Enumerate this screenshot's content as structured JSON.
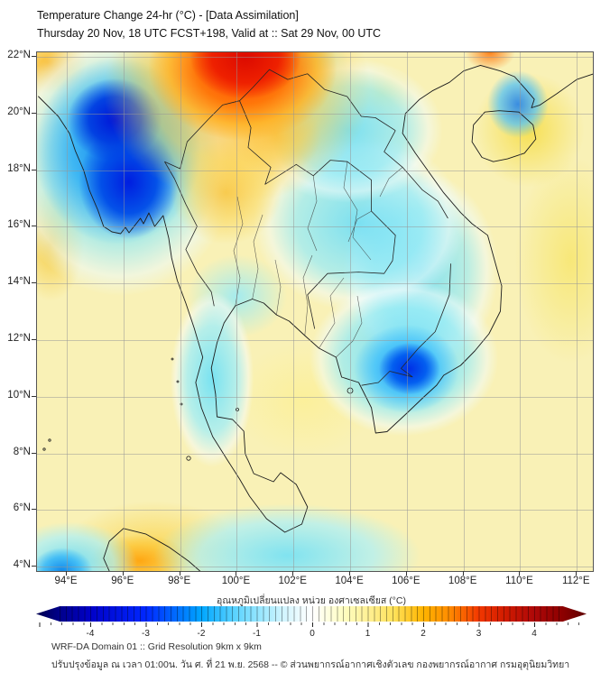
{
  "header": {
    "title": "Temperature Change 24-hr (°C) - [Data Assimilation]",
    "subtitle": "Thursday 20 Nov, 18 UTC FCST+198, Valid at :: Sat 29 Nov, 00 UTC"
  },
  "map": {
    "lat_ticks": [
      "22°N",
      "20°N",
      "18°N",
      "16°N",
      "14°N",
      "12°N",
      "10°N",
      "8°N",
      "6°N",
      "4°N"
    ],
    "lon_ticks": [
      "94°E",
      "96°E",
      "98°E",
      "100°E",
      "102°E",
      "104°E",
      "106°E",
      "108°E",
      "110°E",
      "112°E"
    ],
    "base_color": "#f9f1b6",
    "features": [
      {
        "name": "warm-anomaly-core-north-thailand",
        "at": "37.5% 1%",
        "size": "10% 8%",
        "stops": "#dc0a00 0%, #ee2000 60%, rgba(255,80,0,0) 100%"
      },
      {
        "name": "warm-anomaly-north",
        "at": "37% 3%",
        "size": "17% 14%",
        "stops": "rgba(255,45,0,.96) 0%, rgba(255,110,0,.9) 50%, rgba(255,175,30,.75) 78%, rgba(255,205,80,0) 100%"
      },
      {
        "name": "warm-halo-north",
        "at": "36% 7%",
        "size": "24% 22%",
        "stops": "rgba(255,150,10,.55) 0%, rgba(253,205,70,.55) 65%, rgba(253,220,110,0) 100%"
      },
      {
        "name": "gold-extension-east",
        "at": "43% 16%",
        "size": "8% 8%",
        "stops": "rgba(250,190,50,.8) 0%, rgba(252,220,100,0) 100%"
      },
      {
        "name": "gold-central-thailand",
        "at": "34% 27%",
        "size": "10% 10%",
        "stops": "rgba(248,195,60,.85) 0%, rgba(250,215,95,.6) 55%, rgba(252,230,140,0) 100%"
      },
      {
        "name": "cold-anomaly-myanmar-north",
        "at": "14% 13%",
        "size": "8.5% 8%",
        "stops": "#0016d8 0%, rgba(0,60,225,.95) 55%, rgba(0,120,240,0) 100%"
      },
      {
        "name": "cold-anomaly-myanmar-south",
        "at": "16.5% 25%",
        "size": "9% 11%",
        "stops": "#001ee0 0%, rgba(0,75,232,.95) 55%, rgba(0,130,245,0) 100%"
      },
      {
        "name": "cold-halo-myanmar",
        "at": "14.5% 19%",
        "size": "15% 18%",
        "stops": "rgba(0,115,238,.9) 0%, rgba(45,175,246,.85) 55%, rgba(110,220,250,0) 100%"
      },
      {
        "name": "cyan-halo-myanmar",
        "at": "15% 21%",
        "size": "21% 26%",
        "stops": "rgba(85,205,248,.75) 0%, rgba(140,232,250,.65) 60%, rgba(235,250,252,.55) 85%, rgba(255,255,255,0) 100%"
      },
      {
        "name": "cold-anomaly-core-south-vietnam",
        "at": "67% 61%",
        "size": "5.5% 5%",
        "stops": "#0030e6 0%, rgba(0,90,240,.95) 55%, rgba(30,140,246,0) 100%"
      },
      {
        "name": "cold-mid-south-vietnam",
        "at": "66.5% 61%",
        "size": "9.5% 8.5%",
        "stops": "rgba(25,135,244,.92) 0%, rgba(70,195,250,.85) 60%, rgba(120,225,250,0) 100%"
      },
      {
        "name": "cyan-halo-south-vietnam",
        "at": "66% 59%",
        "size": "17% 15%",
        "stops": "rgba(95,215,248,.85) 0%, rgba(145,235,250,.7) 65%, rgba(240,252,254,.5) 88%, rgba(255,255,255,0) 100%"
      },
      {
        "name": "cold-spot-top-right",
        "at": "86.5% 10%",
        "size": "5.5% 6.5%",
        "stops": "rgba(25,125,240,.85) 0%, rgba(85,195,248,.75) 60%, rgba(130,228,250,0) 100%"
      },
      {
        "name": "warm-dot-top-right",
        "at": "81.5% 0%",
        "size": "4.5% 3.5%",
        "stops": "rgba(255,110,0,.85) 0%, rgba(255,190,60,0) 100%"
      },
      {
        "name": "cyan-wash-laos",
        "at": "56% 15%",
        "size": "17% 14%",
        "stops": "rgba(110,222,246,.9) 0%, rgba(150,235,250,.7) 60%, rgba(240,252,254,.5) 85%, rgba(255,255,255,0) 100%"
      },
      {
        "name": "cyan-top-edge",
        "at": "48% 2%",
        "size": "8% 6%",
        "stops": "rgba(140,230,250,.8) 0%, rgba(240,252,254,0) 100%"
      },
      {
        "name": "cyan-wash-central",
        "at": "58% 33%",
        "size": "19% 17%",
        "stops": "rgba(110,222,246,.9) 0%, rgba(150,235,250,.7) 60%, rgba(240,252,254,.5) 85%, rgba(255,255,255,0) 100%"
      },
      {
        "name": "cyan-wash-east-coast",
        "at": "69% 42%",
        "size": "14% 19%",
        "stops": "rgba(110,222,246,.85) 0%, rgba(150,235,250,.65) 60%, rgba(240,252,254,.5) 85%, rgba(255,255,255,0) 100%"
      },
      {
        "name": "cyan-peninsula",
        "at": "31.5% 63%",
        "size": "7.5% 17%",
        "stops": "rgba(110,225,246,.92) 0%, rgba(160,238,250,.75) 60%, rgba(245,252,254,.5) 87%, rgba(255,255,255,0) 100%"
      },
      {
        "name": "cyan-peninsula-north",
        "at": "36% 47%",
        "size": "9% 8%",
        "stops": "rgba(150,235,248,.85) 0%, rgba(245,252,254,0) 100%"
      },
      {
        "name": "cyan-bottom-band",
        "at": "45% 97%",
        "size": "24% 10%",
        "stops": "rgba(115,225,246,.9) 0%, rgba(170,240,250,.7) 65%, rgba(255,255,255,0) 100%"
      },
      {
        "name": "cold-bottom-left",
        "at": "4.5% 100%",
        "size": "5.5% 4.5%",
        "stops": "rgba(15,135,235,.98) 0%, rgba(60,185,246,.9) 60%, rgba(110,222,250,0) 100%"
      },
      {
        "name": "cyan-bottom-left",
        "at": "6% 98.5%",
        "size": "12% 8%",
        "stops": "rgba(100,218,246,.9) 0%, rgba(170,240,250,.7) 65%, rgba(255,255,255,0) 100%"
      },
      {
        "name": "warm-sumatra",
        "at": "18.5% 98%",
        "size": "9% 5%",
        "stops": "rgba(255,165,15,.97) 0%, rgba(252,200,60,.85) 60%, rgba(252,220,110,0) 100%"
      },
      {
        "name": "gold-sumatra-halo",
        "at": "21% 95.5%",
        "size": "16% 9%",
        "stops": "rgba(250,210,70,.8) 0%, rgba(252,228,130,0) 100%"
      },
      {
        "name": "gold-left-edge",
        "at": "2.5% 37%",
        "size": "6% 11%",
        "stops": "rgba(245,200,55,.9) 0%, rgba(250,222,110,0) 100%"
      },
      {
        "name": "gold-top-left-corner",
        "at": "2% 2%",
        "size": "7% 6%",
        "stops": "rgba(250,185,40,.92) 0%, rgba(252,215,95,0) 100%"
      },
      {
        "name": "gold-northwest",
        "at": "20% 4%",
        "size": "7% 6%",
        "stops": "rgba(250,205,65,.85) 0%, rgba(252,225,115,0) 100%"
      },
      {
        "name": "yellow-hainan",
        "at": "88.5% 15%",
        "size": "10% 11%",
        "stops": "rgba(246,222,75,.92) 0%, rgba(250,236,140,0) 100%"
      },
      {
        "name": "yellow-right-edge",
        "at": "96% 40%",
        "size": "10% 20%",
        "stops": "rgba(247,230,110,.85) 0%, rgba(250,240,170,0) 100%"
      },
      {
        "name": "paleyellow-gulf",
        "at": "48% 67%",
        "size": "13% 11%",
        "stops": "rgba(252,240,150,.85) 0%, rgba(253,246,195,0) 100%"
      },
      {
        "name": "yellow-north-vietnam",
        "at": "62% 8%",
        "size": "6% 5%",
        "stops": "rgba(250,228,100,.8) 0%, rgba(252,240,160,0) 100%"
      }
    ]
  },
  "colorbar": {
    "label": "อุณหภูมิเปลี่ยนแปลง หน่วย องศาเซลเซียส (°C)",
    "ticks": [
      "-4",
      "-3",
      "-2",
      "-1",
      "0",
      "1",
      "2",
      "3",
      "4"
    ],
    "stops": "#00004d 0%, #00008b 4.3%, #0000c8 9.8%, #0028ff 20%, #00a6ff 30%, #5ad2ff 36%, #96e6ff 40.5%, #d2f5ff 45%, #f2fcff 48.5%, #ffffff 50.2%, #ffffe0 53%, #fffdc0 56%, #fff096 60.2%, #ffe25a 65%, #ffb400 70.3%, #ff8c00 75%, #f23800 80.4%, #d21c00 85%, #ae0808 90.5%, #8c0000 95.7%, #5e0000 100%"
  },
  "footer": {
    "line1": "WRF-DA Domain 01 :: Grid Resolution 9km x 9km",
    "line2": "ปรับปรุงข้อมูล ณ เวลา 01:00น. วัน ศ. ที่ 21 พ.ย. 2568 -- © ส่วนพยากรณ์อากาศเชิงตัวเลข กองพยากรณ์อากาศ กรมอุตุนิยมวิทยา"
  }
}
